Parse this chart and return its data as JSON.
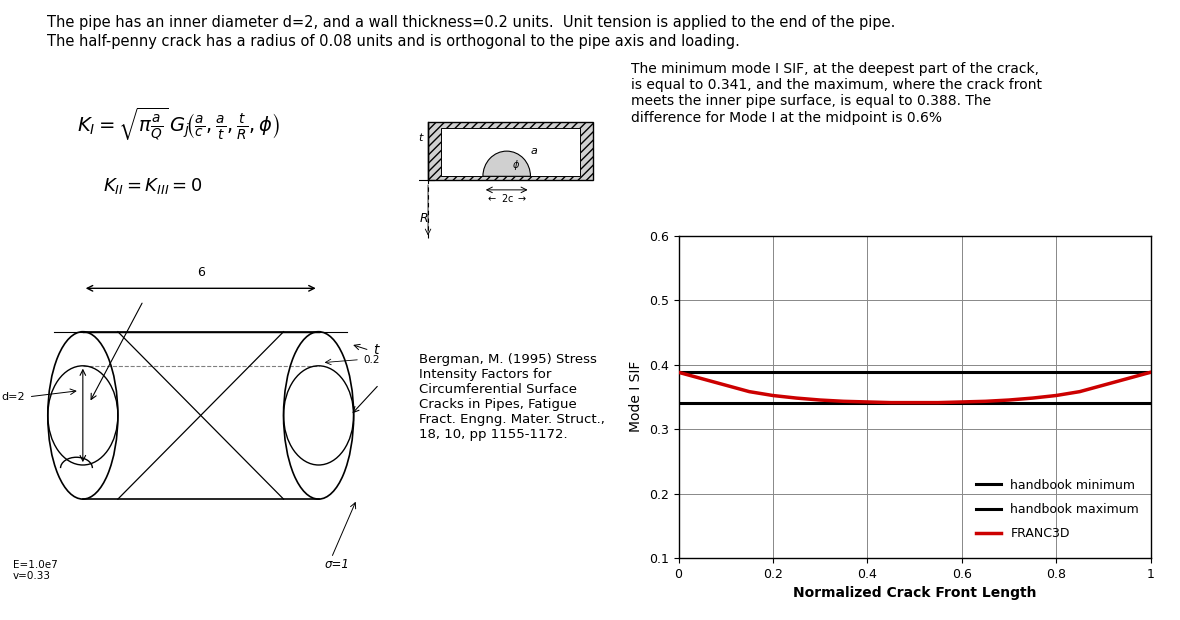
{
  "title_line1": "The pipe has an inner diameter d=2, and a wall thickness=0.2 units.  Unit tension is applied to the end of the pipe.",
  "title_line2": "The half-penny crack has a radius of 0.08 units and is orthogonal to the pipe axis and loading.",
  "desc_text": "The minimum mode I SIF, at the deepest part of the crack,\nis equal to 0.341, and the maximum, where the crack front\nmeets the inner pipe surface, is equal to 0.388. The\ndifference for Mode I at the midpoint is 0.6%",
  "ref_text": "Bergman, M. (1995) Stress\nIntensity Factors for\nCircumferential Surface\nCracks in Pipes, Fatigue\nFract. Engng. Mater. Struct.,\n18, 10, pp 1155-1172.",
  "handbook_min": 0.341,
  "handbook_max": 0.388,
  "franc3d_x": [
    0.0,
    0.05,
    0.1,
    0.15,
    0.2,
    0.25,
    0.3,
    0.35,
    0.4,
    0.45,
    0.5,
    0.55,
    0.6,
    0.65,
    0.7,
    0.75,
    0.8,
    0.85,
    0.9,
    0.95,
    1.0
  ],
  "franc3d_y": [
    0.388,
    0.378,
    0.368,
    0.358,
    0.352,
    0.348,
    0.345,
    0.343,
    0.342,
    0.341,
    0.341,
    0.341,
    0.342,
    0.343,
    0.345,
    0.348,
    0.352,
    0.358,
    0.368,
    0.378,
    0.388
  ],
  "ylim": [
    0.1,
    0.6
  ],
  "xlim": [
    0.0,
    1.0
  ],
  "yticks": [
    0.1,
    0.2,
    0.3,
    0.4,
    0.5,
    0.6
  ],
  "xticks": [
    0.0,
    0.2,
    0.4,
    0.6,
    0.8,
    1.0
  ],
  "xtick_labels": [
    "0",
    "0.2",
    "0.4",
    "0.6",
    "0.8",
    "1"
  ],
  "ylabel": "Mode I SIF",
  "xlabel": "Normalized Crack Front Length",
  "legend_min": "handbook minimum",
  "legend_max": "handbook maximum",
  "legend_franc": "FRANC3D",
  "color_black": "#000000",
  "color_red": "#cc0000",
  "color_bg": "#ffffff",
  "color_gray": "#888888"
}
